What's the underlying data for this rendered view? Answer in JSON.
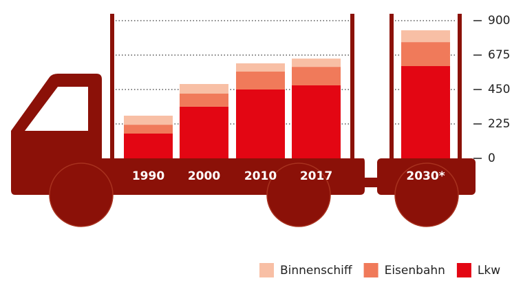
{
  "chart_data": {
    "type": "stacked-bar",
    "categories": [
      "1990",
      "2000",
      "2010",
      "2017",
      "2030*"
    ],
    "series": [
      {
        "name": "Lkw",
        "color": "#e30613",
        "values": [
          162,
          338,
          450,
          477,
          603
        ]
      },
      {
        "name": "Eisenbahn",
        "color": "#f07a5a",
        "values": [
          58,
          85,
          117,
          121,
          157
        ]
      },
      {
        "name": "Binnenschiff",
        "color": "#f8bfa5",
        "values": [
          59,
          63,
          54,
          54,
          77
        ]
      }
    ],
    "ylim": [
      0,
      900
    ],
    "yticks": [
      0,
      225,
      450,
      675,
      900
    ],
    "grid": true
  }
}
